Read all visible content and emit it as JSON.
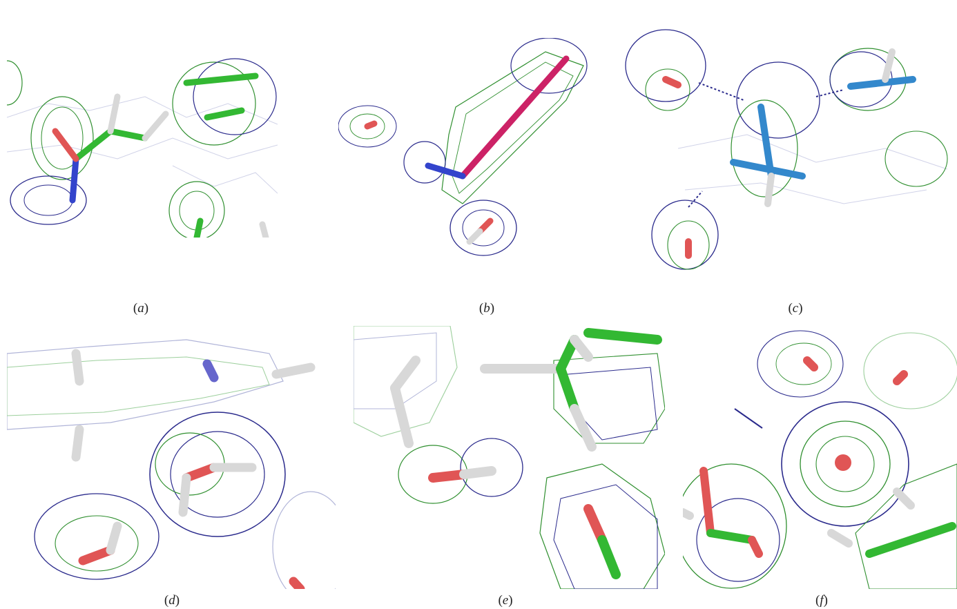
{
  "figure": {
    "panels": [
      {
        "id": "a",
        "label": "a"
      },
      {
        "id": "b",
        "label": "b"
      },
      {
        "id": "c",
        "label": "c"
      },
      {
        "id": "d",
        "label": "d"
      },
      {
        "id": "e",
        "label": "e"
      },
      {
        "id": "f",
        "label": "f"
      }
    ],
    "colors": {
      "mesh_blue": "#2a2a8c",
      "mesh_green": "#2f8f2f",
      "carbon_green": "#33b833",
      "oxygen_red": "#e05555",
      "nitrogen_blue": "#3344cc",
      "hydrogen_white": "#d8d8d8",
      "magenta_stick": "#cc2266",
      "cyan_stick": "#3388cc"
    }
  }
}
